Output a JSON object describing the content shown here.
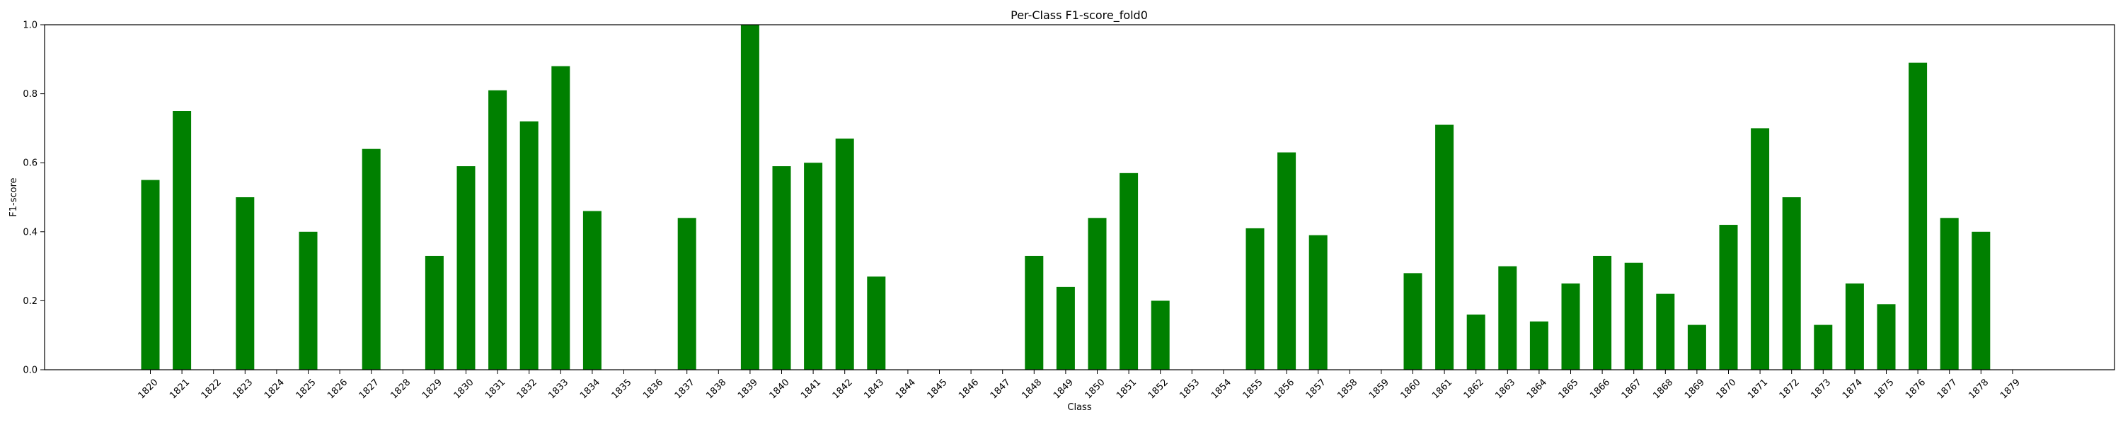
{
  "chart_data": {
    "type": "bar",
    "title": "Per-Class F1-score_fold0",
    "xlabel": "Class",
    "ylabel": "F1-score",
    "ylim": [
      0,
      1.0
    ],
    "yticks": [
      "0.0",
      "0.2",
      "0.4",
      "0.6",
      "0.8",
      "1.0"
    ],
    "grid": false,
    "bar_color": "#008000",
    "categories": [
      "1820",
      "1821",
      "1822",
      "1823",
      "1824",
      "1825",
      "1826",
      "1827",
      "1828",
      "1829",
      "1830",
      "1831",
      "1832",
      "1833",
      "1834",
      "1835",
      "1836",
      "1837",
      "1838",
      "1839",
      "1840",
      "1841",
      "1842",
      "1843",
      "1844",
      "1845",
      "1846",
      "1847",
      "1848",
      "1849",
      "1850",
      "1851",
      "1852",
      "1853",
      "1854",
      "1855",
      "1856",
      "1857",
      "1858",
      "1859",
      "1860",
      "1861",
      "1862",
      "1863",
      "1864",
      "1865",
      "1866",
      "1867",
      "1868",
      "1869",
      "1870",
      "1871",
      "1872",
      "1873",
      "1874",
      "1875",
      "1876",
      "1877",
      "1878",
      "1879"
    ],
    "values": [
      0.55,
      0.75,
      0,
      0.5,
      0,
      0.4,
      0,
      0.64,
      0,
      0.33,
      0.59,
      0.81,
      0.72,
      0.88,
      0.46,
      0,
      0,
      0.44,
      0,
      1.0,
      0.59,
      0.6,
      0.67,
      0.27,
      0,
      0,
      0,
      0,
      0.33,
      0.24,
      0.44,
      0.57,
      0.2,
      0,
      0,
      0.41,
      0.63,
      0.39,
      0,
      0,
      0.28,
      0.71,
      0.16,
      0.3,
      0.14,
      0.25,
      0.33,
      0.31,
      0.22,
      0.13,
      0.42,
      0.7,
      0.5,
      0.13,
      0.25,
      0.19,
      0.89,
      0.44,
      0.4,
      0
    ]
  }
}
